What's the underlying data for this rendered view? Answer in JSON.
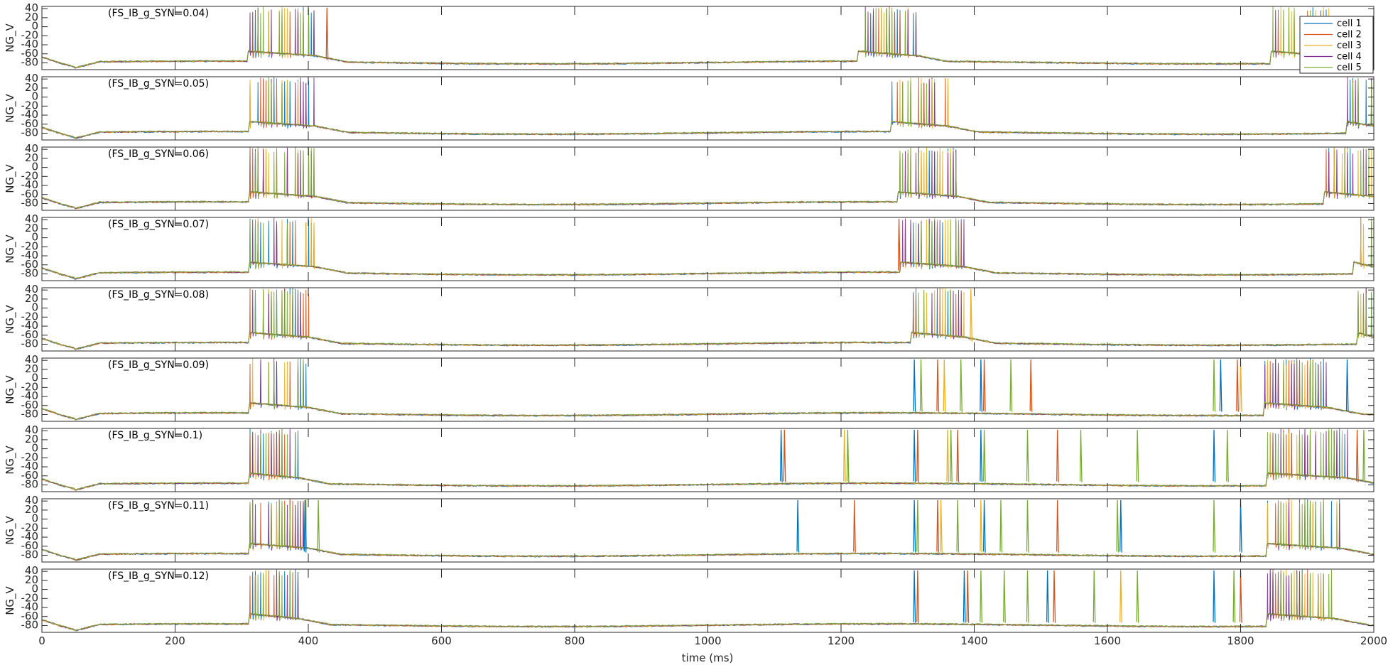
{
  "chart_data": {
    "type": "line",
    "title": "",
    "xlabel": "time (ms)",
    "ylabel": "NG_V",
    "xlim": [
      0,
      2000
    ],
    "ylim": [
      -95,
      45
    ],
    "x_ticks": [
      0,
      200,
      400,
      600,
      800,
      1000,
      1200,
      1400,
      1600,
      1800,
      2000
    ],
    "y_ticks": [
      40,
      20,
      0,
      -20,
      -40,
      -60,
      -80
    ],
    "grid": false,
    "legend_position": "top-right",
    "series": [
      {
        "name": "cell 1",
        "color": "#0072BD"
      },
      {
        "name": "cell 2",
        "color": "#D95319"
      },
      {
        "name": "cell 3",
        "color": "#EDB120"
      },
      {
        "name": "cell 4",
        "color": "#7E2F8E"
      },
      {
        "name": "cell 5",
        "color": "#77AC30"
      }
    ],
    "panels": [
      {
        "label": "(FS_IB_g_SYN=0.04)",
        "bursts": [
          [
            310,
            410
          ],
          [
            1225,
            1315
          ],
          [
            1845,
            1935
          ]
        ],
        "spikes": [
          [
            428,
            1
          ]
        ],
        "dense": true
      },
      {
        "label": "(FS_IB_g_SYN=0.05)",
        "bursts": [
          [
            312,
            410
          ],
          [
            1275,
            1360
          ],
          [
            1960,
            2000
          ]
        ],
        "spikes": [],
        "dense": true
      },
      {
        "label": "(FS_IB_g_SYN=0.06)",
        "bursts": [
          [
            312,
            410
          ],
          [
            1285,
            1375
          ],
          [
            1925,
            2000
          ]
        ],
        "spikes": [],
        "dense": true
      },
      {
        "label": "(FS_IB_g_SYN=0.07)",
        "bursts": [
          [
            312,
            410
          ],
          [
            1290,
            1385
          ],
          [
            1970,
            2000
          ]
        ],
        "spikes": [
          [
            1287,
            1
          ]
        ],
        "dense": true
      },
      {
        "label": "(FS_IB_g_SYN=0.08)",
        "bursts": [
          [
            312,
            400
          ],
          [
            1305,
            1385
          ],
          [
            1975,
            2000
          ]
        ],
        "spikes": [
          [
            1395,
            2
          ]
        ],
        "dense": true
      },
      {
        "label": "(FS_IB_g_SYN=0.09)",
        "bursts": [
          [
            312,
            400
          ],
          [
            1835,
            1930
          ]
        ],
        "spikes": [
          [
            1310,
            0
          ],
          [
            1320,
            4
          ],
          [
            1345,
            1
          ],
          [
            1355,
            2
          ],
          [
            1380,
            4
          ],
          [
            1410,
            0
          ],
          [
            1415,
            1
          ],
          [
            1455,
            4
          ],
          [
            1485,
            1
          ],
          [
            1760,
            4
          ],
          [
            1770,
            0
          ],
          [
            1795,
            1
          ],
          [
            1800,
            2
          ],
          [
            1960,
            0
          ]
        ],
        "dense": false
      },
      {
        "label": "(FS_IB_g_SYN=0.1)",
        "bursts": [
          [
            312,
            385
          ],
          [
            1840,
            1960
          ]
        ],
        "spikes": [
          [
            1110,
            0
          ],
          [
            1115,
            1
          ],
          [
            1205,
            2
          ],
          [
            1210,
            4
          ],
          [
            1310,
            0
          ],
          [
            1315,
            1
          ],
          [
            1360,
            2
          ],
          [
            1365,
            4
          ],
          [
            1375,
            1
          ],
          [
            1410,
            0
          ],
          [
            1415,
            4
          ],
          [
            1480,
            4
          ],
          [
            1525,
            1
          ],
          [
            1560,
            4
          ],
          [
            1645,
            4
          ],
          [
            1760,
            0
          ],
          [
            1780,
            4
          ],
          [
            1975,
            1
          ],
          [
            1985,
            4
          ]
        ],
        "dense": false
      },
      {
        "label": "(FS_IB_g_SYN=0.11)",
        "bursts": [
          [
            312,
            400
          ],
          [
            1840,
            1950
          ]
        ],
        "spikes": [
          [
            1135,
            0
          ],
          [
            1220,
            1
          ],
          [
            1310,
            0
          ],
          [
            1315,
            4
          ],
          [
            1345,
            1
          ],
          [
            1350,
            2
          ],
          [
            1375,
            4
          ],
          [
            1410,
            2
          ],
          [
            1415,
            0
          ],
          [
            1440,
            4
          ],
          [
            1480,
            4
          ],
          [
            1525,
            1
          ],
          [
            1615,
            4
          ],
          [
            1620,
            0
          ],
          [
            1760,
            4
          ],
          [
            1800,
            0
          ],
          [
            415,
            4
          ],
          [
            395,
            0
          ]
        ],
        "dense": false
      },
      {
        "label": "(FS_IB_g_SYN=0.12)",
        "bursts": [
          [
            312,
            385
          ],
          [
            1840,
            1940
          ]
        ],
        "spikes": [
          [
            1310,
            0
          ],
          [
            1315,
            1
          ],
          [
            1385,
            0
          ],
          [
            1390,
            1
          ],
          [
            1410,
            4
          ],
          [
            1445,
            4
          ],
          [
            1480,
            4
          ],
          [
            1510,
            0
          ],
          [
            1520,
            1
          ],
          [
            1580,
            4
          ],
          [
            1620,
            2
          ],
          [
            1645,
            4
          ],
          [
            1760,
            0
          ],
          [
            1790,
            4
          ],
          [
            1800,
            1
          ]
        ],
        "dense": false
      }
    ]
  }
}
